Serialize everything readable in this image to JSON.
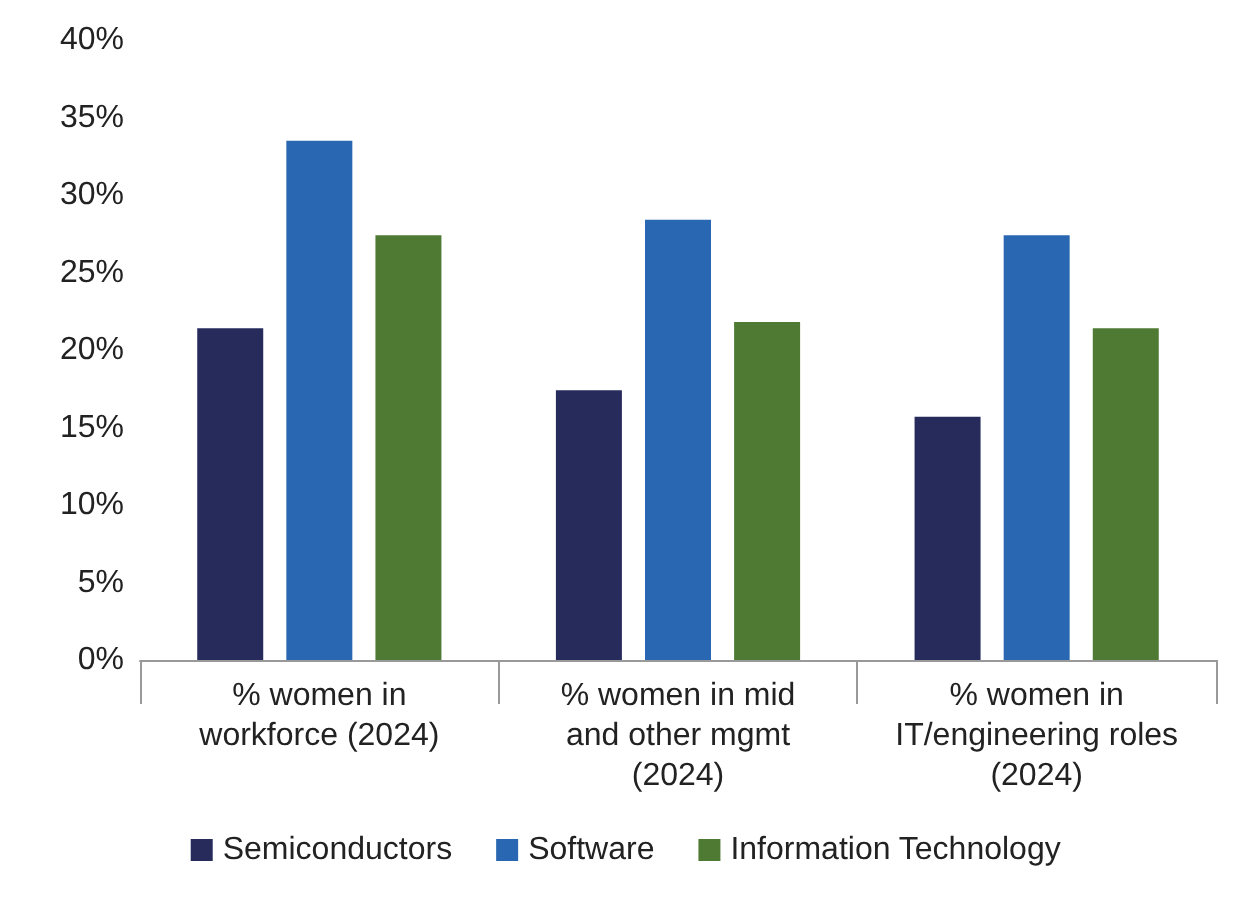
{
  "chart_data": {
    "type": "bar",
    "categories": [
      "% women in\nworkforce (2024)",
      "% women in mid\nand other mgmt\n(2024)",
      "% women in\nIT/engineering roles\n(2024)"
    ],
    "series": [
      {
        "name": "Semiconductors",
        "color": "#262b5c",
        "values": [
          21.4,
          17.4,
          15.7
        ]
      },
      {
        "name": "Software",
        "color": "#2a67b3",
        "values": [
          33.5,
          28.4,
          27.4
        ]
      },
      {
        "name": "Information Technology",
        "color": "#4e7a33",
        "values": [
          27.4,
          21.8,
          21.4
        ]
      }
    ],
    "ylim": [
      0,
      40
    ],
    "yticks": [
      {
        "value": 0,
        "label": "0%"
      },
      {
        "value": 5,
        "label": "5%"
      },
      {
        "value": 10,
        "label": "10%"
      },
      {
        "value": 15,
        "label": "15%"
      },
      {
        "value": 20,
        "label": "20%"
      },
      {
        "value": 25,
        "label": "25%"
      },
      {
        "value": 30,
        "label": "30%"
      },
      {
        "value": 35,
        "label": "35%"
      },
      {
        "value": 40,
        "label": "40%"
      }
    ],
    "grid": false,
    "legend": "bottom"
  }
}
